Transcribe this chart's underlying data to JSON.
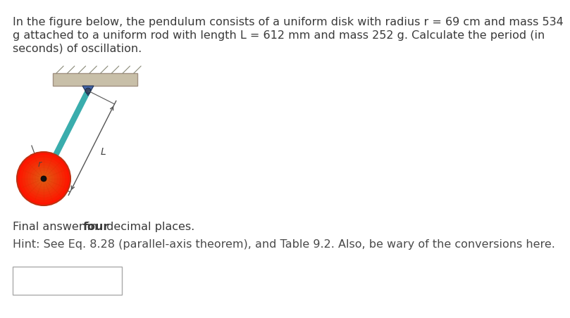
{
  "line1": "In the figure below, the pendulum consists of a uniform disk with radius r = 69 cm and mass 534",
  "line2": "g attached to a uniform rod with length L = 612 mm and mass 252 g. Calculate the period (in",
  "line3": "seconds) of oscillation.",
  "final_pre": "Final answer in ",
  "final_bold": "four",
  "final_post": " decimal places.",
  "hint_text": "Hint: See Eq. 8.28 (parallel-axis theorem), and Table 9.2. Also, be wary of the conversions here.",
  "text_color": "#3a3a3a",
  "hint_color": "#4a4a4a",
  "bg_color": "#ffffff",
  "rod_color": "#3aadad",
  "disk_color": "#e84020",
  "disk_edge_color": "#c03010",
  "support_color": "#c8bfa8",
  "support_edge": "#a09080",
  "pin_color": "#4466aa",
  "annotation_color": "#555555",
  "label_color": "#444444",
  "font_size": 11.5,
  "label_L": "L",
  "label_r": "r"
}
